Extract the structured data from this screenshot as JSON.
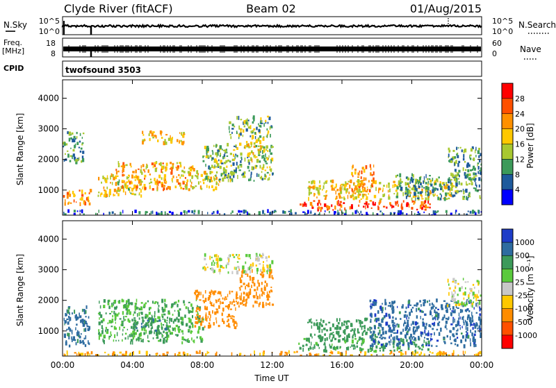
{
  "header": {
    "station": "Clyde River (fitACF)",
    "beam": "Beam 02",
    "date": "01/Aug/2015"
  },
  "params": {
    "nsky_label": "N.Sky",
    "nsearch_label": "N.Search",
    "freq_label_1": "Freq.",
    "freq_label_2": "[MHz]",
    "nave_label": "Nave",
    "cpid_label": "CPID",
    "cpid_value": "twofsound 3503",
    "nsky_ticks": [
      "10^5",
      "10^0"
    ],
    "nsearch_ticks": [
      "10^5",
      "10^0"
    ],
    "freq_ticks": [
      "18",
      "8"
    ],
    "nave_ticks": [
      "60",
      "0"
    ]
  },
  "colorbars": {
    "power": {
      "label": "Power [dB]",
      "ticks": [
        "28",
        "24",
        "20",
        "16",
        "12",
        "8",
        "4"
      ],
      "colors": [
        "#ff0000",
        "#ff5000",
        "#ff9000",
        "#ffc800",
        "#a8c830",
        "#3c9a5a",
        "#1e5a9c",
        "#0000ff"
      ]
    },
    "velocity": {
      "label": "Velocity [m s⁻¹]",
      "ticks": [
        "1000",
        "500",
        "100",
        "25",
        "-25",
        "-100",
        "-500",
        "-1000"
      ],
      "colors": [
        "#1e3cc8",
        "#2e6ca0",
        "#3c9a5a",
        "#5aca3c",
        "#c8c8c8",
        "#ffc800",
        "#ff8c00",
        "#ff5000",
        "#ff0000"
      ]
    }
  },
  "chart_data": [
    {
      "type": "heatmap",
      "name": "power-panel",
      "ylabel": "Slant Range [km]",
      "xlabel": "",
      "x_ticks": [
        "00:00",
        "04:00",
        "08:00",
        "12:00",
        "16:00",
        "20:00",
        "00:00"
      ],
      "y_ticks": [
        1000,
        2000,
        3000,
        4000
      ],
      "xlim": [
        0,
        24
      ],
      "ylim": [
        180,
        4600
      ],
      "colorbar": "Power [dB]",
      "color_scale": [
        0,
        32
      ],
      "regions": [
        {
          "t": [
            0.0,
            24.0
          ],
          "r": [
            180,
            320
          ],
          "value": 6
        },
        {
          "t": [
            0.0,
            1.6
          ],
          "r": [
            500,
            1000
          ],
          "value": 22
        },
        {
          "t": [
            0.0,
            1.2
          ],
          "r": [
            1900,
            2900
          ],
          "value": 10
        },
        {
          "t": [
            2.0,
            4.5
          ],
          "r": [
            800,
            1500
          ],
          "value": 16
        },
        {
          "t": [
            3.0,
            7.5
          ],
          "r": [
            1000,
            1900
          ],
          "value": 20
        },
        {
          "t": [
            4.5,
            7.0
          ],
          "r": [
            2500,
            2900
          ],
          "value": 18
        },
        {
          "t": [
            7.5,
            9.0
          ],
          "r": [
            1000,
            1600
          ],
          "value": 18
        },
        {
          "t": [
            8.0,
            12.0
          ],
          "r": [
            1300,
            2500
          ],
          "value": 12
        },
        {
          "t": [
            9.5,
            12.0
          ],
          "r": [
            2700,
            3400
          ],
          "value": 12
        },
        {
          "t": [
            10.5,
            11.5
          ],
          "r": [
            1900,
            2700
          ],
          "value": 18
        },
        {
          "t": [
            13.5,
            21.0
          ],
          "r": [
            350,
            650
          ],
          "value": 28
        },
        {
          "t": [
            14.0,
            22.5
          ],
          "r": [
            700,
            1300
          ],
          "value": 18
        },
        {
          "t": [
            16.5,
            17.8
          ],
          "r": [
            900,
            1800
          ],
          "value": 22
        },
        {
          "t": [
            19.0,
            24.0
          ],
          "r": [
            700,
            1500
          ],
          "value": 10
        },
        {
          "t": [
            22.0,
            24.0
          ],
          "r": [
            1300,
            2400
          ],
          "value": 10
        }
      ]
    },
    {
      "type": "heatmap",
      "name": "velocity-panel",
      "ylabel": "Slant Range [km]",
      "xlabel": "Time UT",
      "x_ticks": [
        "00:00",
        "04:00",
        "08:00",
        "12:00",
        "16:00",
        "20:00",
        "00:00"
      ],
      "y_ticks": [
        1000,
        2000,
        3000,
        4000
      ],
      "xlim": [
        0,
        24
      ],
      "ylim": [
        180,
        4600
      ],
      "colorbar": "Velocity [m s⁻¹]",
      "color_scale": [
        -1000,
        1000
      ],
      "regions": [
        {
          "t": [
            0.0,
            24.0
          ],
          "r": [
            180,
            320
          ],
          "value": -100
        },
        {
          "t": [
            0.0,
            1.5
          ],
          "r": [
            500,
            1800
          ],
          "value": 700
        },
        {
          "t": [
            2.0,
            8.0
          ],
          "r": [
            600,
            2000
          ],
          "value": 100
        },
        {
          "t": [
            4.0,
            6.0
          ],
          "r": [
            900,
            1500
          ],
          "value": 400
        },
        {
          "t": [
            7.5,
            10.0
          ],
          "r": [
            1100,
            2300
          ],
          "value": -300
        },
        {
          "t": [
            10.0,
            12.0
          ],
          "r": [
            1800,
            3000
          ],
          "value": -300
        },
        {
          "t": [
            8.0,
            12.0
          ],
          "r": [
            2900,
            3500
          ],
          "value": 0
        },
        {
          "t": [
            13.5,
            21.0
          ],
          "r": [
            330,
            750
          ],
          "value": 150
        },
        {
          "t": [
            14.0,
            18.0
          ],
          "r": [
            700,
            1400
          ],
          "value": 200
        },
        {
          "t": [
            17.5,
            24.0
          ],
          "r": [
            500,
            2000
          ],
          "value": 800
        },
        {
          "t": [
            22.0,
            24.0
          ],
          "r": [
            1800,
            2700
          ],
          "value": 10
        }
      ]
    }
  ]
}
